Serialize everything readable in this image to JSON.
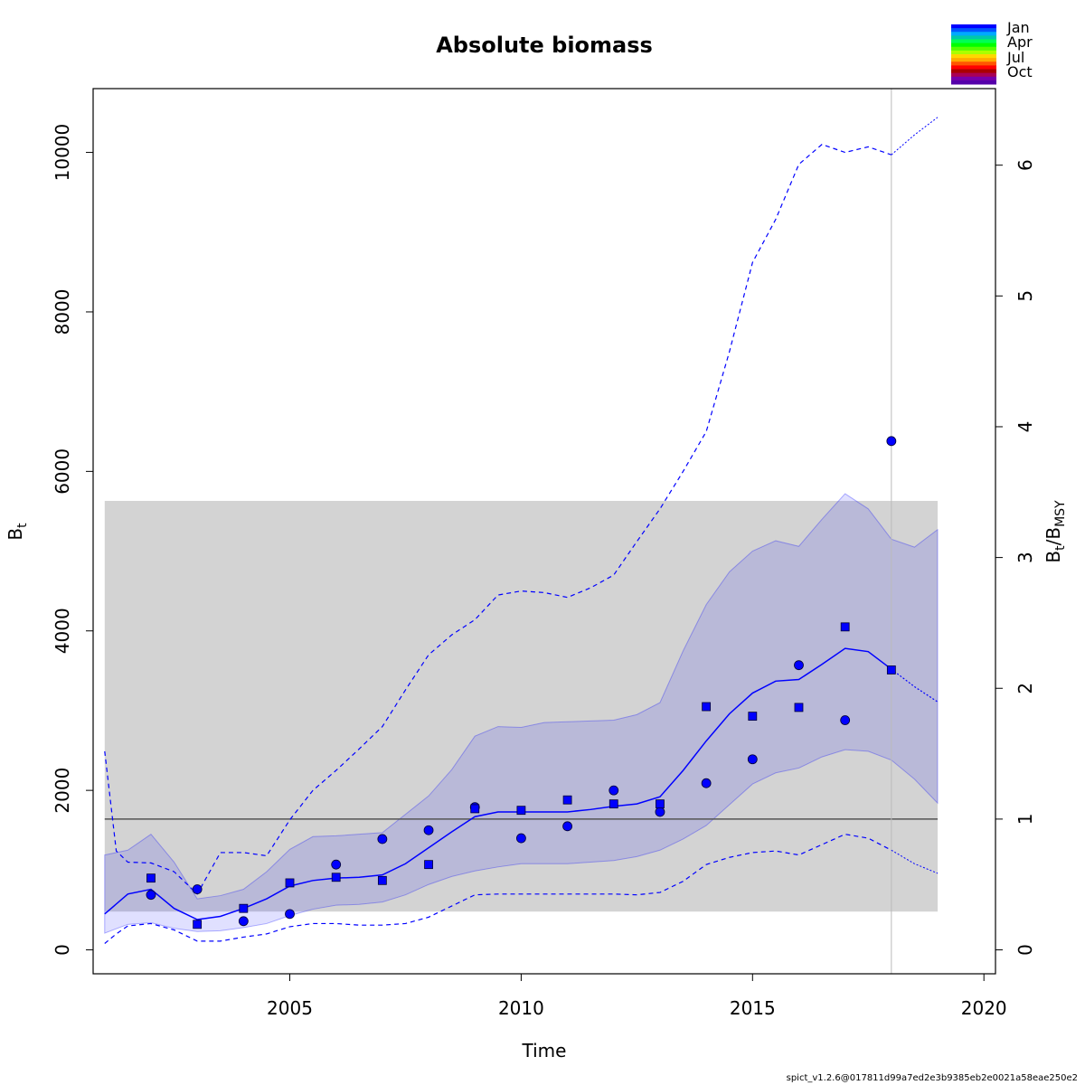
{
  "chart_data": {
    "type": "line",
    "title": "Absolute biomass",
    "xlabel": "Time",
    "ylabel_main": "B",
    "ylabel_sub": "t",
    "y2label_b": "B",
    "y2label_t": "t",
    "y2label_slash": "/B",
    "y2label_msy": "MSY",
    "xlim": [
      2000.75,
      2020.25
    ],
    "ylim": [
      -300,
      10800
    ],
    "x_ticks": [
      2005,
      2010,
      2015,
      2020
    ],
    "x_tick_labels": [
      "2005",
      "2010",
      "2015",
      "2020"
    ],
    "y_ticks": [
      0,
      2000,
      4000,
      6000,
      8000,
      10000
    ],
    "y_tick_labels": [
      "0",
      "2000",
      "4000",
      "6000",
      "8000",
      "10000"
    ],
    "y2_ticks": [
      0,
      1,
      2,
      3,
      4,
      5,
      6
    ],
    "y2_tick_labels": [
      "0",
      "1",
      "2",
      "3",
      "4",
      "5",
      "6"
    ],
    "bmsy": 1640,
    "bmsy_band": {
      "x": [
        2001,
        2019
      ],
      "y": [
        480,
        5630
      ]
    },
    "last_obs_year": 2018,
    "biomass_estimate": {
      "name": "B_t",
      "x": [
        2001,
        2001.5,
        2002,
        2002.5,
        2003,
        2003.5,
        2004,
        2004.5,
        2005,
        2005.5,
        2006,
        2006.5,
        2007,
        2007.5,
        2008,
        2008.5,
        2009,
        2009.5,
        2010,
        2010.5,
        2011,
        2011.5,
        2012,
        2012.5,
        2013,
        2013.5,
        2014,
        2014.5,
        2015,
        2015.5,
        2016,
        2016.5,
        2017,
        2017.5,
        2018
      ],
      "y": [
        450,
        700,
        760,
        520,
        380,
        420,
        520,
        640,
        800,
        870,
        900,
        910,
        940,
        1080,
        1280,
        1480,
        1670,
        1730,
        1730,
        1730,
        1730,
        1760,
        1800,
        1830,
        1920,
        2250,
        2620,
        2960,
        3220,
        3370,
        3390,
        3580,
        3780,
        3740,
        3520
      ]
    },
    "biomass_forecast": {
      "x": [
        2018,
        2018.5,
        2019
      ],
      "y": [
        3520,
        3300,
        3110
      ]
    },
    "ci_inner": {
      "x": [
        2001,
        2001.5,
        2002,
        2002.5,
        2003,
        2003.5,
        2004,
        2004.5,
        2005,
        2005.5,
        2006,
        2006.5,
        2007,
        2007.5,
        2008,
        2008.5,
        2009,
        2009.5,
        2010,
        2010.5,
        2011,
        2011.5,
        2012,
        2012.5,
        2013,
        2013.5,
        2014,
        2014.5,
        2015,
        2015.5,
        2016,
        2016.5,
        2017,
        2017.5,
        2018,
        2018.5,
        2019
      ],
      "lower": [
        210,
        320,
        340,
        270,
        230,
        240,
        280,
        330,
        430,
        510,
        560,
        570,
        600,
        690,
        820,
        920,
        990,
        1040,
        1080,
        1080,
        1080,
        1100,
        1120,
        1170,
        1250,
        1390,
        1560,
        1820,
        2080,
        2220,
        2280,
        2420,
        2510,
        2490,
        2380,
        2140,
        1840
      ],
      "upper": [
        1190,
        1250,
        1450,
        1100,
        640,
        680,
        760,
        980,
        1260,
        1420,
        1430,
        1450,
        1470,
        1700,
        1930,
        2260,
        2680,
        2800,
        2790,
        2850,
        2860,
        2870,
        2880,
        2950,
        3100,
        3750,
        4330,
        4740,
        5000,
        5130,
        5060,
        5400,
        5720,
        5530,
        5150,
        5050,
        5270
      ]
    },
    "ci_outer": {
      "x": [
        2001,
        2001.25,
        2001.5,
        2002,
        2002.5,
        2003,
        2003.5,
        2004,
        2004.5,
        2005,
        2005.5,
        2006,
        2006.5,
        2007,
        2007.5,
        2008,
        2008.5,
        2009,
        2009.5,
        2010,
        2010.5,
        2011,
        2011.5,
        2012,
        2012.5,
        2013,
        2013.5,
        2014,
        2014.5,
        2015,
        2015.5,
        2016,
        2016.5,
        2017,
        2017.5,
        2018
      ],
      "lower": [
        80,
        200,
        300,
        330,
        250,
        110,
        110,
        160,
        200,
        290,
        330,
        330,
        310,
        310,
        330,
        410,
        550,
        690,
        700,
        700,
        700,
        700,
        700,
        700,
        690,
        720,
        860,
        1070,
        1160,
        1220,
        1240,
        1190,
        1320,
        1450,
        1400,
        1250
      ],
      "upper": [
        2490,
        1240,
        1100,
        1090,
        980,
        700,
        1220,
        1220,
        1180,
        1630,
        2000,
        2250,
        2520,
        2800,
        3260,
        3700,
        3950,
        4140,
        4450,
        4500,
        4480,
        4420,
        4540,
        4700,
        5120,
        5530,
        6000,
        6500,
        7500,
        8620,
        9160,
        9850,
        10100,
        10000,
        10070,
        9970
      ]
    },
    "ci_outer_forecast": {
      "x": [
        2018,
        2018.5,
        2019
      ],
      "lower": [
        1250,
        1080,
        960
      ],
      "upper": [
        9970,
        10220,
        10440
      ]
    },
    "obs_index1": {
      "marker": "circle",
      "x": [
        2002,
        2003,
        2004,
        2005,
        2006,
        2007,
        2008,
        2009,
        2010,
        2011,
        2012,
        2013,
        2014,
        2015,
        2016,
        2017,
        2018
      ],
      "y": [
        690,
        760,
        360,
        450,
        1070,
        1390,
        1500,
        1790,
        1400,
        1550,
        2000,
        1730,
        2090,
        2390,
        3570,
        2880,
        6380
      ]
    },
    "obs_index2": {
      "marker": "square",
      "x": [
        2002,
        2003,
        2004,
        2005,
        2006,
        2007,
        2008,
        2009,
        2010,
        2011,
        2012,
        2013,
        2014,
        2015,
        2016,
        2017,
        2018
      ],
      "y": [
        900,
        320,
        520,
        840,
        910,
        870,
        1070,
        1770,
        1750,
        1880,
        1830,
        1830,
        3050,
        2930,
        3040,
        4050,
        3510
      ]
    },
    "legend": {
      "position": "top-right",
      "labels": [
        "Jan",
        "Apr",
        "Jul",
        "Oct"
      ],
      "colors": [
        "#0000FF",
        "#0055FF",
        "#00AAFF",
        "#00C8AA",
        "#00FF55",
        "#00FF00",
        "#55FF00",
        "#AAFF00",
        "#FFD700",
        "#FFAA00",
        "#FF5500",
        "#FF0000",
        "#AA0000",
        "#AA0055",
        "#7700AA",
        "#5500AA"
      ]
    },
    "colors": {
      "band": "#d3d3d3",
      "ci_fill": "rgba(0,0,255,0.12)",
      "line": "#0000FF",
      "bmsy_line": "#000000",
      "vline": "#bbbbbb"
    }
  },
  "footer": "spict_v1.2.6@017811d99a7ed2e3b9385eb2e0021a58eae250e2"
}
